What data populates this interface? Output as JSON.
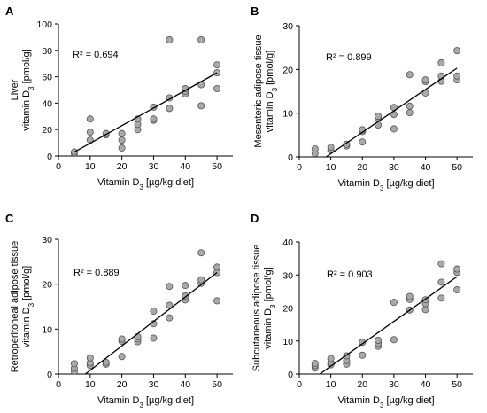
{
  "chart_data": [
    {
      "type": "scatter",
      "panel_label": "A",
      "ylabel_line1": "Liver",
      "ylabel_line2_prefix": "vitamin D",
      "ylabel_line2_sub": "3",
      "ylabel_line2_suffix": " [pmol/g]",
      "xlabel_prefix": "Vitamin D",
      "xlabel_sub": "3",
      "xlabel_suffix": " [µg/kg diet]",
      "annotation": "R² = 0.694",
      "xlim": [
        0,
        55
      ],
      "ylim": [
        0,
        100
      ],
      "xticks": [
        "0",
        "10",
        "20",
        "30",
        "40",
        "50"
      ],
      "yticks": [
        "0",
        "20",
        "40",
        "60",
        "80",
        "100"
      ],
      "points": [
        [
          5,
          2
        ],
        [
          5,
          3
        ],
        [
          10,
          12
        ],
        [
          10,
          18
        ],
        [
          10,
          28
        ],
        [
          15,
          16
        ],
        [
          15,
          17
        ],
        [
          20,
          6
        ],
        [
          20,
          12
        ],
        [
          20,
          17
        ],
        [
          25,
          20
        ],
        [
          25,
          24
        ],
        [
          25,
          28
        ],
        [
          30,
          27
        ],
        [
          30,
          28
        ],
        [
          30,
          37
        ],
        [
          35,
          36
        ],
        [
          35,
          44
        ],
        [
          35,
          88
        ],
        [
          40,
          47
        ],
        [
          40,
          49
        ],
        [
          40,
          51
        ],
        [
          45,
          38
        ],
        [
          45,
          54
        ],
        [
          45,
          88
        ],
        [
          50,
          51
        ],
        [
          50,
          63
        ],
        [
          50,
          69
        ]
      ],
      "trendline": [
        [
          5,
          3
        ],
        [
          50,
          63
        ]
      ],
      "marker_color": "#a9a9a9",
      "line_color": "#000000"
    },
    {
      "type": "scatter",
      "panel_label": "B",
      "ylabel_line1": "Mesenteric adipose tissue",
      "ylabel_line2_prefix": "vitamin D",
      "ylabel_line2_sub": "3",
      "ylabel_line2_suffix": " [pmol/g]",
      "xlabel_prefix": "Vitamin D",
      "xlabel_sub": "3",
      "xlabel_suffix": " [µg/kg diet]",
      "annotation": "R² = 0.899",
      "xlim": [
        0,
        55
      ],
      "ylim": [
        0,
        30
      ],
      "xticks": [
        "0",
        "10",
        "20",
        "30",
        "40",
        "50"
      ],
      "yticks": [
        "0",
        "10",
        "20",
        "30"
      ],
      "points": [
        [
          5,
          0.8
        ],
        [
          5,
          1.8
        ],
        [
          10,
          1.5
        ],
        [
          10,
          2.2
        ],
        [
          15,
          2.5
        ],
        [
          15,
          2.9
        ],
        [
          20,
          3.4
        ],
        [
          20,
          5.8
        ],
        [
          20,
          6.2
        ],
        [
          25,
          7.3
        ],
        [
          25,
          8.9
        ],
        [
          25,
          9.3
        ],
        [
          30,
          6.4
        ],
        [
          30,
          9.7
        ],
        [
          30,
          11.3
        ],
        [
          35,
          10.1
        ],
        [
          35,
          11.6
        ],
        [
          35,
          18.8
        ],
        [
          40,
          14.6
        ],
        [
          40,
          17.2
        ],
        [
          40,
          17.6
        ],
        [
          45,
          17.3
        ],
        [
          45,
          18.5
        ],
        [
          45,
          21.5
        ],
        [
          50,
          17.6
        ],
        [
          50,
          18.5
        ],
        [
          50,
          24.3
        ]
      ],
      "trendline": [
        [
          8.5,
          0
        ],
        [
          50,
          20.3
        ]
      ],
      "marker_color": "#a9a9a9",
      "line_color": "#000000"
    },
    {
      "type": "scatter",
      "panel_label": "C",
      "ylabel_line1": "Retroperitoneal adipose tissue",
      "ylabel_line2_prefix": "vitamin D",
      "ylabel_line2_sub": "3",
      "ylabel_line2_suffix": " [pmol/g]",
      "xlabel_prefix": "Vitamin D",
      "xlabel_sub": "3",
      "xlabel_suffix": " [µg/kg diet]",
      "annotation": "R² = 0.889",
      "xlim": [
        0,
        55
      ],
      "ylim": [
        0,
        30
      ],
      "xticks": [
        "0",
        "10",
        "20",
        "30",
        "40",
        "50"
      ],
      "yticks": [
        "0",
        "10",
        "20",
        "30"
      ],
      "points": [
        [
          5,
          0.6
        ],
        [
          5,
          1.3
        ],
        [
          5,
          2.3
        ],
        [
          10,
          1.9
        ],
        [
          10,
          2.5
        ],
        [
          10,
          3.6
        ],
        [
          15,
          2.2
        ],
        [
          15,
          2.6
        ],
        [
          20,
          3.9
        ],
        [
          20,
          7.3
        ],
        [
          20,
          7.8
        ],
        [
          25,
          7.2
        ],
        [
          25,
          7.8
        ],
        [
          25,
          8.3
        ],
        [
          30,
          8.0
        ],
        [
          30,
          11.2
        ],
        [
          30,
          14.0
        ],
        [
          35,
          12.5
        ],
        [
          35,
          15.3
        ],
        [
          35,
          19.5
        ],
        [
          40,
          16.5
        ],
        [
          40,
          17.4
        ],
        [
          40,
          19.7
        ],
        [
          45,
          20.2
        ],
        [
          45,
          21.0
        ],
        [
          45,
          27.0
        ],
        [
          50,
          16.3
        ],
        [
          50,
          22.6
        ],
        [
          50,
          23.8
        ]
      ],
      "trendline": [
        [
          8.5,
          0
        ],
        [
          50,
          22.6
        ]
      ],
      "marker_color": "#a9a9a9",
      "line_color": "#000000"
    },
    {
      "type": "scatter",
      "panel_label": "D",
      "ylabel_line1": "Subcutaneous adipose tissue",
      "ylabel_line2_prefix": "vitamin D",
      "ylabel_line2_sub": "3",
      "ylabel_line2_suffix": " [pmol/g]",
      "xlabel_prefix": "Vitamin D",
      "xlabel_sub": "3",
      "xlabel_suffix": " [µg/kg diet]",
      "annotation": "R² = 0.903",
      "xlim": [
        0,
        55
      ],
      "ylim": [
        0,
        40
      ],
      "xticks": [
        "0",
        "10",
        "20",
        "30",
        "40",
        "50"
      ],
      "yticks": [
        "0",
        "10",
        "20",
        "30",
        "40"
      ],
      "points": [
        [
          5,
          1.8
        ],
        [
          5,
          2.6
        ],
        [
          5,
          3.2
        ],
        [
          10,
          2.8
        ],
        [
          10,
          3.5
        ],
        [
          10,
          4.7
        ],
        [
          15,
          3.0
        ],
        [
          15,
          4.1
        ],
        [
          15,
          5.5
        ],
        [
          20,
          5.7
        ],
        [
          20,
          9.6
        ],
        [
          25,
          8.4
        ],
        [
          25,
          9.3
        ],
        [
          25,
          10.2
        ],
        [
          30,
          10.4
        ],
        [
          30,
          21.7
        ],
        [
          35,
          19.4
        ],
        [
          35,
          22.6
        ],
        [
          35,
          23.5
        ],
        [
          40,
          19.5
        ],
        [
          40,
          21.3
        ],
        [
          40,
          22.5
        ],
        [
          45,
          23.0
        ],
        [
          45,
          27.8
        ],
        [
          45,
          33.4
        ],
        [
          50,
          25.5
        ],
        [
          50,
          30.8
        ],
        [
          50,
          31.8
        ]
      ],
      "trendline": [
        [
          6.5,
          0
        ],
        [
          50,
          29.5
        ]
      ],
      "marker_color": "#a9a9a9",
      "line_color": "#000000"
    }
  ]
}
